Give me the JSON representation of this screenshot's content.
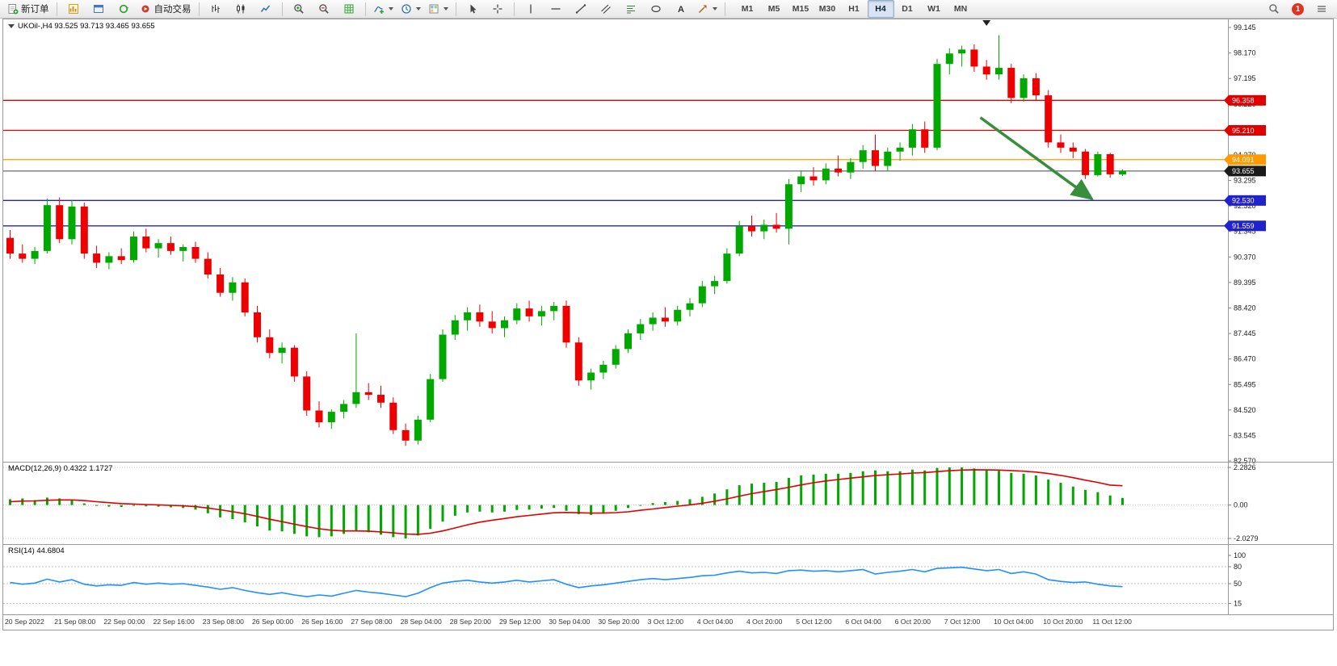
{
  "toolbar": {
    "new_order_label": "新订单",
    "auto_trading_label": "自动交易",
    "text_tool_glyph": "A",
    "timeframes": [
      "M1",
      "M5",
      "M15",
      "M30",
      "H1",
      "H4",
      "D1",
      "W1",
      "MN"
    ],
    "active_timeframe": "H4",
    "notification_count": "1",
    "icon_buttons": [
      "new-order",
      "charts",
      "profiles",
      "refresh",
      "auto-trading",
      "bar-chart",
      "candlestick-chart",
      "line-chart",
      "zoom-in",
      "zoom-out",
      "grid",
      "indicators",
      "periods",
      "templates",
      "cursor",
      "crosshair",
      "vertical-line",
      "horizontal-line",
      "trendline",
      "channel",
      "fibonacci",
      "shapes",
      "text",
      "arrows",
      "search",
      "notification",
      "menu"
    ]
  },
  "chart": {
    "title": "UKOil-,H4  93.525 93.713 93.465 93.655",
    "symbol": "UKOil-",
    "timeframe": "H4",
    "open": "93.525",
    "high": "93.713",
    "low": "93.465",
    "close": "93.655"
  },
  "indicators": {
    "macd_label": "MACD(12,26,9) 0.4322 1.1727",
    "rsi_label": "RSI(14) 44.6804"
  },
  "chart_data": [
    {
      "type": "candlestick",
      "symbol": "UKOil-",
      "timeframe": "H4",
      "up_color": "#00a800",
      "down_color": "#ee0000",
      "y_axis": {
        "ticks_start": 99.145,
        "ticks_step": 0.975,
        "ticks_count": 18,
        "top_price": 99.454,
        "bottom_price": 82.54
      },
      "x_axis_labels": [
        {
          "index": 0,
          "label": "20 Sep 2022"
        },
        {
          "index": 4,
          "label": "21 Sep 08:00"
        },
        {
          "index": 8,
          "label": "22 Sep 00:00"
        },
        {
          "index": 12,
          "label": "22 Sep 16:00"
        },
        {
          "index": 16,
          "label": "23 Sep 08:00"
        },
        {
          "index": 20,
          "label": "26 Sep 00:00"
        },
        {
          "index": 24,
          "label": "26 Sep 16:00"
        },
        {
          "index": 28,
          "label": "27 Sep 08:00"
        },
        {
          "index": 32,
          "label": "28 Sep 04:00"
        },
        {
          "index": 36,
          "label": "28 Sep 20:00"
        },
        {
          "index": 40,
          "label": "29 Sep 12:00"
        },
        {
          "index": 44,
          "label": "30 Sep 04:00"
        },
        {
          "index": 48,
          "label": "30 Sep 20:00"
        },
        {
          "index": 52,
          "label": "3 Oct 12:00"
        },
        {
          "index": 56,
          "label": "4 Oct 04:00"
        },
        {
          "index": 60,
          "label": "4 Oct 20:00"
        },
        {
          "index": 64,
          "label": "5 Oct 12:00"
        },
        {
          "index": 68,
          "label": "6 Oct 04:00"
        },
        {
          "index": 72,
          "label": "6 Oct 20:00"
        },
        {
          "index": 76,
          "label": "7 Oct 12:00"
        },
        {
          "index": 80,
          "label": "10 Oct 04:00"
        },
        {
          "index": 84,
          "label": "10 Oct 20:00"
        },
        {
          "index": 88,
          "label": "11 Oct 12:00"
        }
      ],
      "candles": [
        [
          91.1,
          91.4,
          90.3,
          90.5
        ],
        [
          90.5,
          90.85,
          90.15,
          90.3
        ],
        [
          90.3,
          90.75,
          90.1,
          90.6
        ],
        [
          90.6,
          92.6,
          90.5,
          92.35
        ],
        [
          92.35,
          92.65,
          90.9,
          91.05
        ],
        [
          91.05,
          92.55,
          90.85,
          92.3
        ],
        [
          92.3,
          92.45,
          90.3,
          90.5
        ],
        [
          90.5,
          90.8,
          89.95,
          90.15
        ],
        [
          90.15,
          90.55,
          89.9,
          90.4
        ],
        [
          90.4,
          90.7,
          90.1,
          90.25
        ],
        [
          90.25,
          91.35,
          90.15,
          91.15
        ],
        [
          91.15,
          91.45,
          90.55,
          90.7
        ],
        [
          90.7,
          91.05,
          90.35,
          90.9
        ],
        [
          90.9,
          91.15,
          90.45,
          90.6
        ],
        [
          90.6,
          90.85,
          90.2,
          90.75
        ],
        [
          90.75,
          90.95,
          90.15,
          90.3
        ],
        [
          90.3,
          90.55,
          89.55,
          89.7
        ],
        [
          89.7,
          89.95,
          88.85,
          89.0
        ],
        [
          89.0,
          89.6,
          88.7,
          89.4
        ],
        [
          89.4,
          89.55,
          88.1,
          88.25
        ],
        [
          88.25,
          88.5,
          87.1,
          87.3
        ],
        [
          87.3,
          87.6,
          86.5,
          86.7
        ],
        [
          86.7,
          87.1,
          86.3,
          86.9
        ],
        [
          86.9,
          87.0,
          85.6,
          85.8
        ],
        [
          85.8,
          86.0,
          84.3,
          84.5
        ],
        [
          84.5,
          84.85,
          83.85,
          84.05
        ],
        [
          84.05,
          84.55,
          83.8,
          84.45
        ],
        [
          84.45,
          84.9,
          84.2,
          84.75
        ],
        [
          84.75,
          87.45,
          84.6,
          85.2
        ],
        [
          85.2,
          85.55,
          84.9,
          85.1
        ],
        [
          85.1,
          85.45,
          84.6,
          84.8
        ],
        [
          84.8,
          85.0,
          83.6,
          83.75
        ],
        [
          83.75,
          84.0,
          83.15,
          83.35
        ],
        [
          83.35,
          84.3,
          83.2,
          84.15
        ],
        [
          84.15,
          85.9,
          84.05,
          85.7
        ],
        [
          85.7,
          87.6,
          85.6,
          87.4
        ],
        [
          87.4,
          88.15,
          87.2,
          87.95
        ],
        [
          87.95,
          88.45,
          87.55,
          88.25
        ],
        [
          88.25,
          88.55,
          87.7,
          87.9
        ],
        [
          87.9,
          88.3,
          87.45,
          87.65
        ],
        [
          87.65,
          88.1,
          87.3,
          87.95
        ],
        [
          87.95,
          88.6,
          87.8,
          88.4
        ],
        [
          88.4,
          88.7,
          87.9,
          88.1
        ],
        [
          88.1,
          88.5,
          87.75,
          88.3
        ],
        [
          88.3,
          88.65,
          87.95,
          88.5
        ],
        [
          88.5,
          88.7,
          86.9,
          87.1
        ],
        [
          87.1,
          87.3,
          85.45,
          85.65
        ],
        [
          85.65,
          86.1,
          85.3,
          85.95
        ],
        [
          85.95,
          86.4,
          85.7,
          86.25
        ],
        [
          86.25,
          87.0,
          86.1,
          86.85
        ],
        [
          86.85,
          87.6,
          86.7,
          87.45
        ],
        [
          87.45,
          88.0,
          87.2,
          87.8
        ],
        [
          87.8,
          88.25,
          87.55,
          88.05
        ],
        [
          88.05,
          88.45,
          87.7,
          87.9
        ],
        [
          87.9,
          88.5,
          87.75,
          88.35
        ],
        [
          88.35,
          88.8,
          88.1,
          88.6
        ],
        [
          88.6,
          89.45,
          88.45,
          89.25
        ],
        [
          89.25,
          89.65,
          88.95,
          89.45
        ],
        [
          89.45,
          90.7,
          89.35,
          90.5
        ],
        [
          90.5,
          91.75,
          90.4,
          91.55
        ],
        [
          91.55,
          91.95,
          91.15,
          91.35
        ],
        [
          91.35,
          91.8,
          91.05,
          91.6
        ],
        [
          91.6,
          92.05,
          91.3,
          91.45
        ],
        [
          91.45,
          93.35,
          90.85,
          93.15
        ],
        [
          93.15,
          93.65,
          92.85,
          93.45
        ],
        [
          93.45,
          93.8,
          93.1,
          93.3
        ],
        [
          93.3,
          93.95,
          93.15,
          93.75
        ],
        [
          93.75,
          94.25,
          93.45,
          93.6
        ],
        [
          93.6,
          94.15,
          93.35,
          94.0
        ],
        [
          94.0,
          94.65,
          93.75,
          94.45
        ],
        [
          94.45,
          95.05,
          93.65,
          93.85
        ],
        [
          93.85,
          94.55,
          93.65,
          94.4
        ],
        [
          94.4,
          94.75,
          94.05,
          94.55
        ],
        [
          94.55,
          95.45,
          94.25,
          95.25
        ],
        [
          95.25,
          95.55,
          94.35,
          94.55
        ],
        [
          94.55,
          97.95,
          94.45,
          97.75
        ],
        [
          97.75,
          98.35,
          97.35,
          98.15
        ],
        [
          98.15,
          98.45,
          97.65,
          98.3
        ],
        [
          98.3,
          98.5,
          97.45,
          97.65
        ],
        [
          97.65,
          97.9,
          97.15,
          97.35
        ],
        [
          97.35,
          98.85,
          97.15,
          97.6
        ],
        [
          97.6,
          97.75,
          96.25,
          96.45
        ],
        [
          96.45,
          97.35,
          96.3,
          97.2
        ],
        [
          97.2,
          97.4,
          96.35,
          96.55
        ],
        [
          96.55,
          96.75,
          94.55,
          94.75
        ],
        [
          94.75,
          95.05,
          94.35,
          94.55
        ],
        [
          94.55,
          94.75,
          94.15,
          94.4
        ],
        [
          94.4,
          94.5,
          93.35,
          93.5
        ],
        [
          93.5,
          94.4,
          93.45,
          94.3
        ],
        [
          94.3,
          94.35,
          93.4,
          93.53
        ],
        [
          93.525,
          93.713,
          93.465,
          93.655
        ]
      ],
      "horizontal_lines": [
        {
          "price": 96.358,
          "badge": "96.358",
          "color": "#e00000"
        },
        {
          "price": 95.21,
          "badge": "95.210",
          "color": "#e00000"
        },
        {
          "price": 94.091,
          "badge": "94.091",
          "color": "#ff9a00"
        },
        {
          "price": 92.53,
          "badge": "92.530",
          "color": "#2222cc"
        },
        {
          "price": 91.559,
          "badge": "91.559",
          "color": "#2222cc"
        }
      ],
      "current_price": {
        "price": 93.655,
        "badge": "93.655",
        "color": "#1a1a1a"
      },
      "trend_arrow": {
        "from_index": 78.5,
        "from_price": 95.7,
        "to_index": 87.5,
        "to_price": 92.6,
        "color": "#388e3c"
      },
      "top_marker_index": 79
    },
    {
      "type": "macd",
      "label": "MACD(12,26,9)",
      "macd_value": 0.4322,
      "signal_value": 1.1727,
      "max": 2.2826,
      "min": -2.0279,
      "scale_labels": [
        {
          "value": 2.2826,
          "label": "2.2826"
        },
        {
          "value": 0,
          "label": "0.00"
        },
        {
          "value": -2.0279,
          "label": "-2.0279"
        }
      ],
      "histogram_color": "#00a800",
      "signal_color": "#e00000",
      "histogram": [
        0.35,
        0.4,
        0.3,
        0.45,
        0.4,
        0.3,
        0.1,
        -0.05,
        -0.1,
        -0.12,
        -0.05,
        -0.08,
        -0.1,
        -0.14,
        -0.18,
        -0.28,
        -0.5,
        -0.75,
        -0.85,
        -1.05,
        -1.3,
        -1.55,
        -1.6,
        -1.75,
        -1.9,
        -1.95,
        -1.9,
        -1.75,
        -1.55,
        -1.65,
        -1.8,
        -1.95,
        -2.03,
        -1.85,
        -1.45,
        -1.0,
        -0.65,
        -0.45,
        -0.4,
        -0.45,
        -0.4,
        -0.3,
        -0.28,
        -0.22,
        -0.18,
        -0.35,
        -0.55,
        -0.6,
        -0.5,
        -0.35,
        -0.18,
        0.0,
        0.12,
        0.18,
        0.25,
        0.35,
        0.5,
        0.7,
        0.95,
        1.2,
        1.3,
        1.35,
        1.4,
        1.65,
        1.8,
        1.85,
        1.9,
        1.9,
        1.95,
        2.05,
        2.1,
        2.05,
        2.05,
        2.15,
        2.1,
        2.25,
        2.28,
        2.28,
        2.22,
        2.12,
        2.08,
        1.95,
        1.9,
        1.8,
        1.55,
        1.35,
        1.12,
        0.92,
        0.78,
        0.58,
        0.43
      ],
      "signal": [
        0.2,
        0.24,
        0.25,
        0.29,
        0.31,
        0.31,
        0.27,
        0.2,
        0.14,
        0.09,
        0.06,
        0.03,
        0.01,
        -0.02,
        -0.05,
        -0.1,
        -0.18,
        -0.29,
        -0.4,
        -0.53,
        -0.69,
        -0.86,
        -1.01,
        -1.16,
        -1.31,
        -1.44,
        -1.53,
        -1.57,
        -1.57,
        -1.58,
        -1.63,
        -1.69,
        -1.76,
        -1.78,
        -1.71,
        -1.57,
        -1.39,
        -1.2,
        -1.04,
        -0.92,
        -0.82,
        -0.71,
        -0.63,
        -0.55,
        -0.47,
        -0.45,
        -0.47,
        -0.49,
        -0.49,
        -0.46,
        -0.41,
        -0.32,
        -0.24,
        -0.15,
        -0.07,
        0.01,
        0.11,
        0.23,
        0.37,
        0.54,
        0.69,
        0.82,
        0.94,
        1.08,
        1.22,
        1.35,
        1.46,
        1.55,
        1.63,
        1.71,
        1.79,
        1.84,
        1.88,
        1.94,
        1.97,
        2.03,
        2.08,
        2.12,
        2.14,
        2.13,
        2.12,
        2.09,
        2.05,
        2.0,
        1.91,
        1.8,
        1.66,
        1.51,
        1.37,
        1.21,
        1.17
      ]
    },
    {
      "type": "rsi",
      "label": "RSI(14)",
      "value": 44.6804,
      "line_color": "#1e90ff",
      "scale_labels": [
        {
          "value": 100,
          "label": "100"
        },
        {
          "value": 80,
          "label": "80"
        },
        {
          "value": 50,
          "label": "50"
        },
        {
          "value": 15,
          "label": "15"
        }
      ],
      "levels": [
        80,
        50,
        15
      ],
      "values": [
        52,
        49,
        51,
        58,
        53,
        57,
        49,
        46,
        48,
        47,
        52,
        49,
        51,
        49,
        50,
        47,
        44,
        40,
        43,
        38,
        34,
        31,
        34,
        30,
        27,
        30,
        28,
        33,
        38,
        35,
        33,
        30,
        27,
        33,
        43,
        51,
        54,
        56,
        53,
        51,
        53,
        56,
        53,
        55,
        57,
        49,
        43,
        46,
        48,
        51,
        54,
        57,
        59,
        57,
        59,
        61,
        64,
        65,
        69,
        72,
        69,
        70,
        68,
        73,
        74,
        72,
        73,
        71,
        73,
        75,
        67,
        70,
        72,
        75,
        71,
        77,
        78,
        79,
        76,
        73,
        75,
        68,
        71,
        67,
        57,
        54,
        52,
        53,
        49,
        46,
        44.68
      ]
    }
  ]
}
